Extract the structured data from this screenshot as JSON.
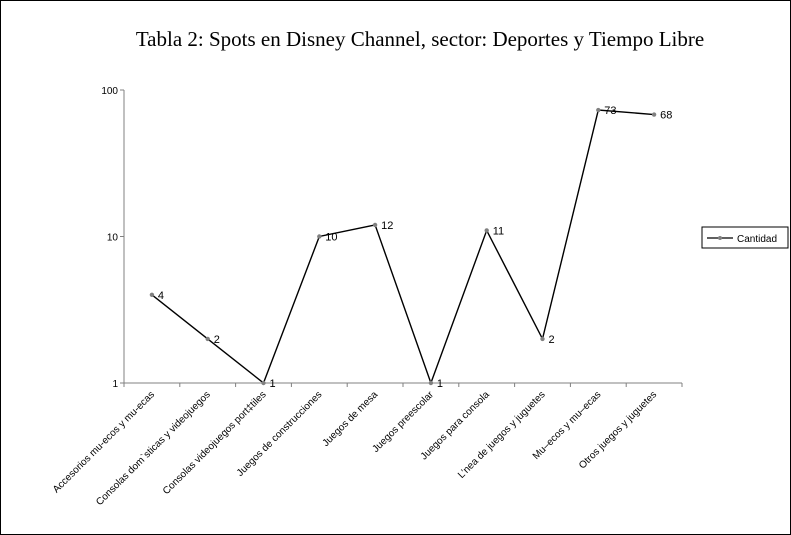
{
  "chart_data": {
    "type": "line",
    "title": "Tabla 2: Spots en Disney Channel, sector: Deportes y Tiempo Libre",
    "categories": [
      "Accesorios mu-ecos y mu-ecas",
      "Consolas dom`sticas y videojuegos",
      "Consolas videojuegos port‡tiles",
      "Juegos de construcciones",
      "Juegos de mesa",
      "Juegos preescolar",
      "Juegos para consola",
      "L’nea de juegos y juguetes",
      "Mu–ecos y mu–ecas",
      "Otros juegos y juguetes"
    ],
    "series": [
      {
        "name": "Cantidad",
        "values": [
          4,
          2,
          1,
          10,
          12,
          1,
          11,
          2,
          73,
          68
        ]
      }
    ],
    "data_labels": [
      "4",
      "2",
      "1",
      "10",
      "12",
      "1",
      "11",
      "2",
      "73",
      "68"
    ],
    "y_scale": "log",
    "ylim": [
      1,
      100
    ],
    "y_ticks": [
      1,
      10,
      100
    ],
    "y_tick_labels": [
      "1",
      "10",
      "100"
    ],
    "grid": false,
    "legend_position": "right",
    "colors": {
      "series_line": "#000000",
      "marker": "#808080"
    }
  }
}
